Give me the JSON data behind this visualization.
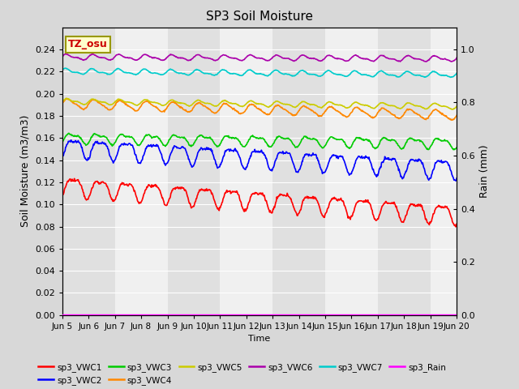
{
  "title": "SP3 Soil Moisture",
  "xlabel": "Time",
  "ylabel_left": "Soil Moisture (m3/m3)",
  "ylabel_right": "Rain (mm)",
  "ylim_left": [
    0.0,
    0.26
  ],
  "ylim_right": [
    0.0,
    1.083
  ],
  "yticks_left": [
    0.0,
    0.02,
    0.04,
    0.06,
    0.08,
    0.1,
    0.12,
    0.14,
    0.16,
    0.18,
    0.2,
    0.22,
    0.24
  ],
  "yticks_right": [
    0.0,
    0.2,
    0.4,
    0.6,
    0.8,
    1.0
  ],
  "xtick_labels": [
    "Jun 5",
    "Jun 6",
    "Jun 7",
    "Jun 8",
    "Jun 9",
    "Jun 10",
    "Jun 11",
    "Jun 12",
    "Jun 13",
    "Jun 14",
    "Jun 15",
    "Jun 16",
    "Jun 17",
    "Jun 18",
    "Jun 19",
    "Jun 20"
  ],
  "series": {
    "sp3_VWC1": {
      "color": "#ff0000",
      "base": 0.117,
      "amp": 0.008,
      "amp2": 0.003,
      "trend": -0.0017,
      "phase": -1.2
    },
    "sp3_VWC2": {
      "color": "#0000ff",
      "base": 0.152,
      "amp": 0.008,
      "amp2": 0.003,
      "trend": -0.0013,
      "phase": -1.2
    },
    "sp3_VWC3": {
      "color": "#00cc00",
      "base": 0.16,
      "amp": 0.004,
      "amp2": 0.002,
      "trend": -0.0003,
      "phase": -0.8
    },
    "sp3_VWC4": {
      "color": "#ff8800",
      "base": 0.191,
      "amp": 0.004,
      "amp2": 0.001,
      "trend": -0.0007,
      "phase": 0.0
    },
    "sp3_VWC5": {
      "color": "#cccc00",
      "base": 0.193,
      "amp": 0.002,
      "amp2": 0.001,
      "trend": -0.0003,
      "phase": 0.0
    },
    "sp3_VWC6": {
      "color": "#aa00aa",
      "base": 0.233,
      "amp": 0.002,
      "amp2": 0.001,
      "trend": -0.0001,
      "phase": 0.2
    },
    "sp3_VWC7": {
      "color": "#00cccc",
      "base": 0.22,
      "amp": 0.002,
      "amp2": 0.001,
      "trend": -0.0002,
      "phase": 0.5
    },
    "sp3_Rain": {
      "color": "#ff00ff",
      "base": 0.001,
      "amp": 0.0,
      "amp2": 0.0,
      "trend": 0.0,
      "phase": 0.0
    }
  },
  "bg_color": "#d8d8d8",
  "plot_bg_light": "#f0f0f0",
  "plot_bg_dark": "#e0e0e0",
  "tz_label": "TZ_osu",
  "legend_order": [
    "sp3_VWC1",
    "sp3_VWC2",
    "sp3_VWC3",
    "sp3_VWC4",
    "sp3_VWC5",
    "sp3_VWC6",
    "sp3_VWC7",
    "sp3_Rain"
  ]
}
